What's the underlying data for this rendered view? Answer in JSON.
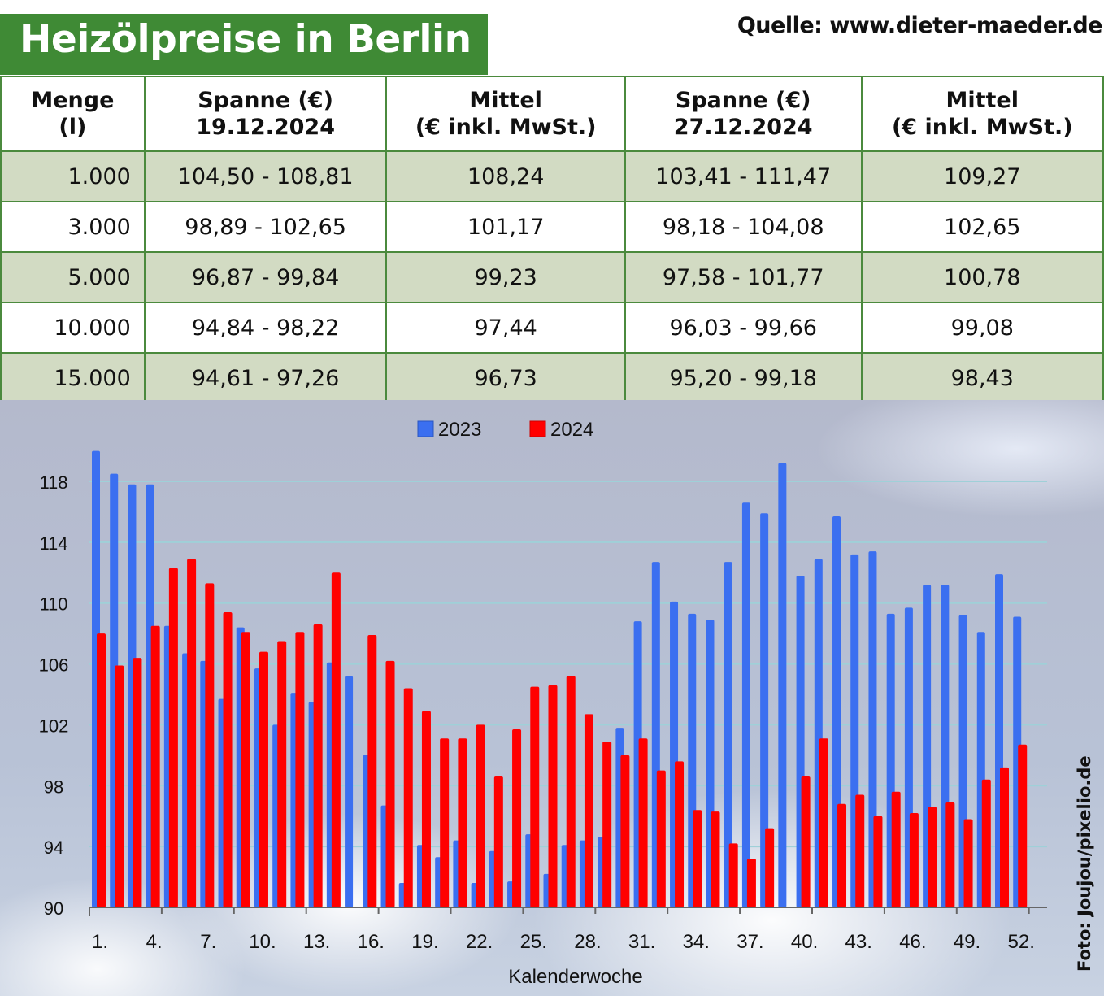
{
  "header": {
    "title": "Heizölpreise in Berlin",
    "source": "Quelle: www.dieter-maeder.de"
  },
  "table": {
    "headers": [
      [
        "Menge",
        "(l)"
      ],
      [
        "Spanne (€)",
        "19.12.2024"
      ],
      [
        "Mittel",
        "(€ inkl. MwSt.)"
      ],
      [
        "Spanne (€)",
        "27.12.2024"
      ],
      [
        "Mittel",
        "(€ inkl. MwSt.)"
      ]
    ],
    "rows": [
      [
        "1.000",
        "104,50 - 108,81",
        "108,24",
        "103,41 - 111,47",
        "109,27"
      ],
      [
        "3.000",
        "98,89 - 102,65",
        "101,17",
        "98,18 - 104,08",
        "102,65"
      ],
      [
        "5.000",
        "96,87 - 99,84",
        "99,23",
        "97,58 - 101,77",
        "100,78"
      ],
      [
        "10.000",
        "94,84 - 98,22",
        "97,44",
        "96,03 - 99,66",
        "99,08"
      ],
      [
        "15.000",
        "94,61 - 97,26",
        "96,73",
        "95,20 - 99,18",
        "98,43"
      ]
    ]
  },
  "photo_credit": "Foto: Joujou/pixelio.de",
  "chart_data": {
    "type": "bar",
    "xlabel": "Kalenderwoche",
    "ylabel": "",
    "ylim": [
      90,
      120
    ],
    "yticks": [
      90,
      94,
      98,
      102,
      106,
      110,
      114,
      118
    ],
    "xtick_labels": [
      "1.",
      "4.",
      "7.",
      "10.",
      "13.",
      "16.",
      "19.",
      "22.",
      "25.",
      "28.",
      "31.",
      "34.",
      "37.",
      "40.",
      "43.",
      "46.",
      "49.",
      "52."
    ],
    "xtick_weeks": [
      1,
      4,
      7,
      10,
      13,
      16,
      19,
      22,
      25,
      28,
      31,
      34,
      37,
      40,
      43,
      46,
      49,
      52
    ],
    "grid": true,
    "legend": "top-center",
    "x": [
      1,
      2,
      3,
      4,
      5,
      6,
      7,
      8,
      9,
      10,
      11,
      12,
      13,
      14,
      15,
      16,
      17,
      18,
      19,
      20,
      21,
      22,
      23,
      24,
      25,
      26,
      27,
      28,
      29,
      30,
      31,
      32,
      33,
      34,
      35,
      36,
      37,
      38,
      39,
      40,
      41,
      42,
      43,
      44,
      45,
      46,
      47,
      48,
      49,
      50,
      51,
      52
    ],
    "series": [
      {
        "name": "2023",
        "color": "#3b6ff0",
        "values": [
          120.0,
          118.5,
          117.8,
          117.8,
          108.5,
          106.7,
          106.2,
          103.7,
          108.4,
          105.7,
          102.0,
          104.1,
          103.5,
          106.1,
          105.2,
          100.0,
          96.7,
          91.6,
          94.1,
          93.3,
          94.4,
          91.6,
          93.7,
          91.7,
          94.8,
          92.2,
          94.1,
          94.4,
          94.6,
          101.8,
          108.8,
          112.7,
          110.1,
          109.3,
          108.9,
          112.7,
          116.6,
          115.9,
          119.2,
          111.8,
          112.9,
          115.7,
          113.2,
          113.4,
          109.3,
          109.7,
          111.2,
          111.2,
          109.2,
          108.1,
          111.9,
          109.1
        ]
      },
      {
        "name": "2024",
        "color": "#ff0000",
        "values": [
          108.0,
          105.9,
          106.4,
          108.5,
          112.3,
          112.9,
          111.3,
          109.4,
          108.1,
          106.8,
          107.5,
          108.1,
          108.6,
          112.0,
          null,
          107.9,
          106.2,
          104.4,
          102.9,
          101.1,
          101.1,
          102.0,
          98.6,
          101.7,
          104.5,
          104.6,
          105.2,
          102.7,
          100.9,
          100.0,
          101.1,
          99.0,
          99.6,
          96.4,
          96.3,
          94.2,
          93.2,
          95.2,
          null,
          98.6,
          101.1,
          96.8,
          97.4,
          96.0,
          97.6,
          96.2,
          96.6,
          96.9,
          95.8,
          98.4,
          99.2,
          100.7
        ]
      }
    ]
  }
}
